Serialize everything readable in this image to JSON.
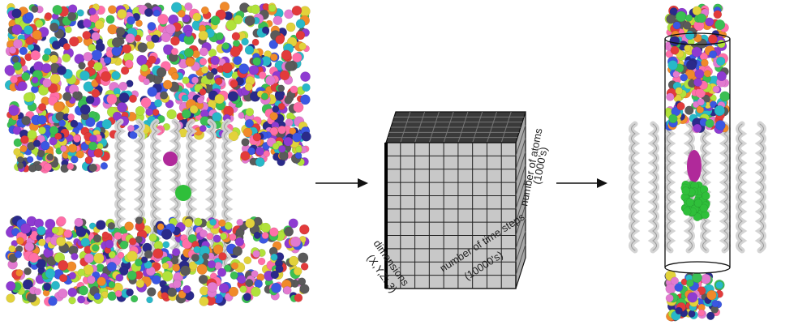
{
  "panels": {
    "left": {
      "name": "membrane-protein-simulation"
    },
    "middle": {
      "name": "trajectory-tensor",
      "labels": {
        "atoms_line1": "number of atoms",
        "atoms_line2": "(1000's)",
        "time_line1": "number of time steps",
        "time_line2": "(10000's)",
        "dims_line1": "dimensions",
        "dims_line2": "(X,Y,Z: 3)"
      }
    },
    "right": {
      "name": "pore-cylinder-selection"
    }
  },
  "colors": {
    "protein": "#d2d2d2",
    "pore_magenta": "#b0299a",
    "pore_green": "#2fbf3a",
    "cube_front": "#c8c8c8",
    "cube_top": "#3a3a3a",
    "arrow": "#111111",
    "atom_palette": [
      "#e23b3b",
      "#3b57e2",
      "#28b8c8",
      "#e2d23b",
      "#8e3bd1",
      "#3bbf53",
      "#e27ad0",
      "#f08a2a",
      "#5a5a5a",
      "#b1e23b",
      "#2a2a8a",
      "#ff6fa8"
    ]
  }
}
